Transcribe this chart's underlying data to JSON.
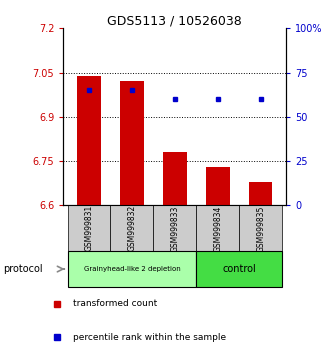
{
  "title": "GDS5113 / 10526038",
  "samples": [
    "GSM999831",
    "GSM999832",
    "GSM999833",
    "GSM999834",
    "GSM999835"
  ],
  "bar_values": [
    7.04,
    7.02,
    6.78,
    6.73,
    6.68
  ],
  "dot_values": [
    65,
    65,
    60,
    60,
    60
  ],
  "bar_base": 6.6,
  "ylim_left": [
    6.6,
    7.2
  ],
  "ylim_right": [
    0,
    100
  ],
  "yticks_left": [
    6.6,
    6.75,
    6.9,
    7.05,
    7.2
  ],
  "ytick_labels_left": [
    "6.6",
    "6.75",
    "6.9",
    "7.05",
    "7.2"
  ],
  "yticks_right": [
    0,
    25,
    50,
    75,
    100
  ],
  "ytick_labels_right": [
    "0",
    "25",
    "50",
    "75",
    "100%"
  ],
  "hlines": [
    6.75,
    6.9,
    7.05
  ],
  "bar_color": "#cc0000",
  "dot_color": "#0000cc",
  "groups": [
    {
      "label": "Grainyhead-like 2 depletion",
      "indices": [
        0,
        1,
        2
      ],
      "color": "#aaffaa"
    },
    {
      "label": "control",
      "indices": [
        3,
        4
      ],
      "color": "#44dd44"
    }
  ],
  "protocol_label": "protocol",
  "legend_items": [
    {
      "color": "#cc0000",
      "label": "transformed count"
    },
    {
      "color": "#0000cc",
      "label": "percentile rank within the sample"
    }
  ],
  "tick_color_left": "#cc0000",
  "tick_color_right": "#0000cc",
  "bg_color": "#ffffff",
  "sample_bg_color": "#cccccc",
  "bar_width": 0.55
}
